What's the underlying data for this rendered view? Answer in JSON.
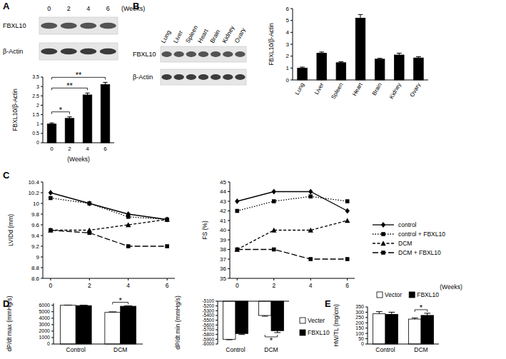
{
  "panel_labels": [
    "A",
    "B",
    "C",
    "D",
    "E"
  ],
  "blots": [
    {
      "lane_labels": [
        "0",
        "2",
        "4",
        "6"
      ],
      "lane_title": "(Weeks)",
      "rows": [
        "FBXL10",
        "β-Actin"
      ]
    },
    {
      "lane_labels": [
        "Lung",
        "Liver",
        "Spleen",
        "Heart",
        "Brain",
        "Kidney",
        "Ovary"
      ],
      "rows": [
        "FBXL10",
        "β-Actin"
      ]
    }
  ],
  "chart_data": [
    {
      "type": "bar",
      "categories": [
        "0",
        "2",
        "4",
        "6"
      ],
      "values": [
        1.0,
        1.3,
        2.55,
        3.1
      ],
      "errors": [
        0.06,
        0.08,
        0.1,
        0.12
      ],
      "color": "#000000",
      "ylim": [
        0,
        3.5
      ],
      "yticks": [
        0,
        0.5,
        1,
        1.5,
        2,
        2.5,
        3,
        3.5
      ],
      "y_label": "FBXL10/β-Actin",
      "x_label": "(Weeks)",
      "annotations": [
        {
          "text": "*",
          "between": [
            "0",
            "2"
          ]
        },
        {
          "text": "**",
          "between": [
            "0",
            "4"
          ]
        },
        {
          "text": "**",
          "between": [
            "0",
            "6"
          ]
        }
      ]
    },
    {
      "type": "bar",
      "categories": [
        "Lung",
        "Liver",
        "Spleen",
        "Heart",
        "Brain",
        "Kidney",
        "Ovary"
      ],
      "values": [
        1.0,
        2.25,
        1.45,
        5.2,
        1.75,
        2.1,
        1.85
      ],
      "errors": [
        0.08,
        0.1,
        0.08,
        0.3,
        0.07,
        0.15,
        0.1
      ],
      "color": "#000000",
      "ylim": [
        0,
        6
      ],
      "yticks": [
        0,
        1,
        2,
        3,
        4,
        5,
        6
      ],
      "y_label": "FBXL10/β-Actin"
    },
    {
      "type": "line",
      "x": [
        0,
        2,
        4,
        6
      ],
      "xlim": [
        -0.4,
        6.4
      ],
      "xticks": [
        0,
        2,
        4,
        6
      ],
      "ylim": [
        8.6,
        10.4
      ],
      "yticks": [
        8.6,
        8.8,
        9,
        9.2,
        9.4,
        9.6,
        9.8,
        10,
        10.2,
        10.4
      ],
      "y_label": "LVIDd (mm)",
      "series": [
        {
          "color": "#000000",
          "marker": "diamond",
          "line_style": "solid",
          "values": [
            10.2,
            10.0,
            9.8,
            9.7
          ]
        },
        {
          "color": "#000000",
          "marker": "square",
          "line_style": "dotted",
          "values": [
            10.1,
            10.0,
            9.75,
            9.7
          ]
        },
        {
          "color": "#000000",
          "marker": "triangle",
          "line_style": "dashed",
          "values": [
            9.5,
            9.5,
            9.6,
            9.7
          ]
        },
        {
          "color": "#000000",
          "marker": "square",
          "line_style": "longdash",
          "values": [
            9.5,
            9.45,
            9.2,
            9.2
          ]
        }
      ]
    },
    {
      "type": "line",
      "x": [
        0,
        2,
        4,
        6
      ],
      "xlim": [
        -0.4,
        6.4
      ],
      "xticks": [
        0,
        2,
        4,
        6
      ],
      "ylim": [
        35,
        45
      ],
      "yticks": [
        35,
        36,
        37,
        38,
        39,
        40,
        41,
        42,
        43,
        44,
        45
      ],
      "y_label": "FS (%)",
      "x_label": "(Weeks)",
      "legend": "right",
      "series": [
        {
          "name": "control",
          "color": "#000000",
          "marker": "diamond",
          "line_style": "solid",
          "values": [
            43,
            44,
            44,
            42
          ]
        },
        {
          "name": "control + FBXL10",
          "color": "#000000",
          "marker": "square",
          "line_style": "dotted",
          "values": [
            42,
            43,
            43.5,
            43
          ]
        },
        {
          "name": "DCM",
          "color": "#000000",
          "marker": "triangle",
          "line_style": "dashed",
          "values": [
            38,
            40,
            40,
            41
          ]
        },
        {
          "name": "DCM + FBXL10",
          "color": "#000000",
          "marker": "square",
          "line_style": "longdash",
          "values": [
            38,
            38,
            37,
            37
          ]
        }
      ]
    },
    {
      "type": "bar",
      "categories": [
        "Control",
        "DCM"
      ],
      "ylim": [
        0,
        6300
      ],
      "yticks": [
        0,
        1000,
        2000,
        3000,
        4000,
        5000,
        6000
      ],
      "y_label": "dP/dt max (mmHg/s)",
      "series": [
        {
          "color": "#ffffff",
          "values": [
            6000,
            4900
          ],
          "errors": [
            30,
            80
          ]
        },
        {
          "color": "#000000",
          "values": [
            5950,
            5850
          ],
          "errors": [
            60,
            60
          ]
        }
      ],
      "annotations": [
        {
          "text": "*",
          "category": "DCM"
        }
      ]
    },
    {
      "type": "bar",
      "categories": [
        "Control",
        "DCM"
      ],
      "ylim": [
        -6000,
        -5100
      ],
      "yticks": [
        -5100,
        -5200,
        -5300,
        -5400,
        -5500,
        -5600,
        -5700,
        -5800,
        -5900,
        -6000
      ],
      "y_label": "dP/dt min (mmHg/s)",
      "legend": "right",
      "series": [
        {
          "name": "Vecter",
          "color": "#ffffff",
          "values": [
            -5900,
            -5400
          ],
          "errors": [
            10,
            15
          ]
        },
        {
          "name": "FBXL10",
          "color": "#000000",
          "values": [
            -5780,
            -5720
          ],
          "errors": [
            20,
            40
          ]
        }
      ],
      "annotations": [
        {
          "text": "*",
          "category": "DCM"
        }
      ]
    },
    {
      "type": "bar",
      "categories": [
        "Control",
        "DCM"
      ],
      "ylim": [
        0,
        350
      ],
      "yticks": [
        0,
        50,
        100,
        150,
        200,
        250,
        300,
        350
      ],
      "y_label": "HW/TL (mg/cm)",
      "legend": "top",
      "series": [
        {
          "name": "Vector",
          "color": "#ffffff",
          "values": [
            285,
            235
          ],
          "errors": [
            20,
            10
          ]
        },
        {
          "name": "FBXL10",
          "color": "#000000",
          "values": [
            280,
            270
          ],
          "errors": [
            20,
            20
          ]
        }
      ],
      "annotations": [
        {
          "text": "*",
          "category": "DCM"
        }
      ]
    }
  ]
}
